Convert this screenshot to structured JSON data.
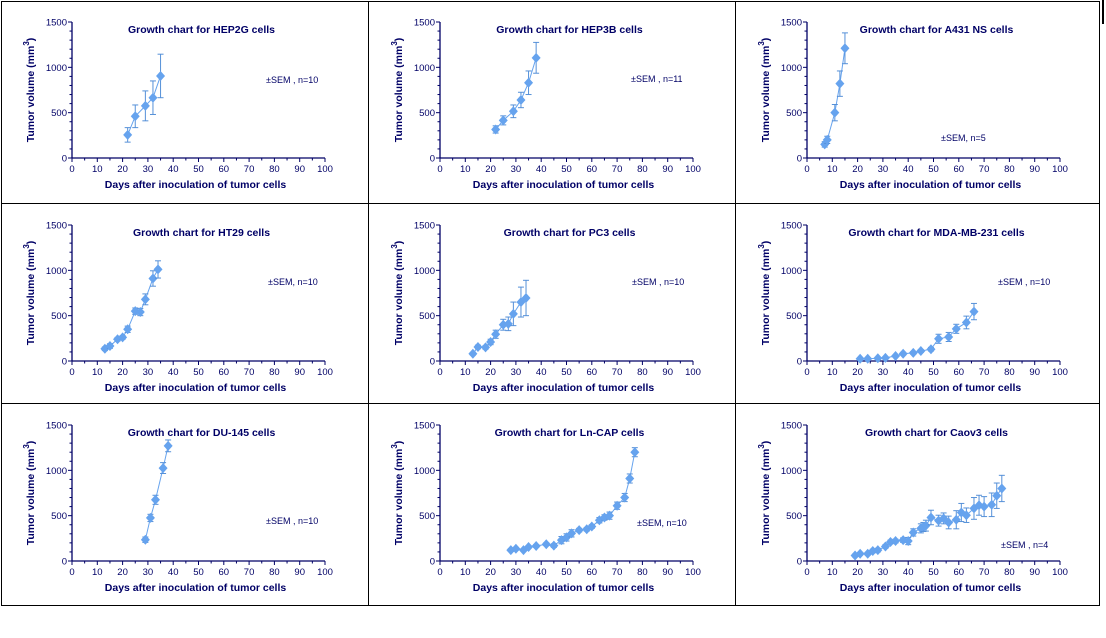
{
  "colors": {
    "axis": "#000066",
    "series": "#66a3ee",
    "error": "#5590d8"
  },
  "common": {
    "xlabel": "Days after inoculation of tumor cells",
    "ylabel_main": "Tumor volume (mm",
    "ylabel_sup": "3",
    "ylabel_end": ")",
    "xticks": [
      "0",
      "10",
      "20",
      "30",
      "40",
      "50",
      "60",
      "70",
      "80",
      "90",
      "100"
    ],
    "yticks": [
      "0",
      "500",
      "1000",
      "1500"
    ]
  },
  "chart_data": [
    {
      "type": "line",
      "title": "Growth chart for HEP2G cells",
      "annotation": "±SEM , n=10",
      "xlim": [
        0,
        100
      ],
      "ylim": [
        0,
        1500
      ],
      "x": [
        22,
        25,
        29,
        32,
        35
      ],
      "y": [
        255,
        460,
        575,
        665,
        905
      ],
      "err": [
        80,
        125,
        165,
        185,
        240
      ]
    },
    {
      "type": "line",
      "title": "Growth chart for HEP3B cells",
      "annotation": "±SEM , n=11",
      "xlim": [
        0,
        100
      ],
      "ylim": [
        0,
        1500
      ],
      "x": [
        22,
        25,
        29,
        32,
        35,
        38
      ],
      "y": [
        315,
        415,
        515,
        640,
        830,
        1105
      ],
      "err": [
        40,
        50,
        70,
        85,
        130,
        170
      ]
    },
    {
      "type": "line",
      "title": "Growth chart for A431 NS cells",
      "annotation": "±SEM, n=5",
      "xlim": [
        0,
        100
      ],
      "ylim": [
        0,
        1500
      ],
      "x": [
        7,
        8,
        11,
        13,
        15
      ],
      "y": [
        150,
        200,
        500,
        820,
        1210
      ],
      "err": [
        30,
        40,
        90,
        140,
        170
      ]
    },
    {
      "type": "line",
      "title": "Growth chart for HT29 cells",
      "annotation": "±SEM, n=10",
      "xlim": [
        0,
        100
      ],
      "ylim": [
        0,
        1500
      ],
      "x": [
        13,
        15,
        18,
        20,
        22,
        25,
        27,
        29,
        32,
        34
      ],
      "y": [
        135,
        165,
        240,
        260,
        350,
        550,
        540,
        680,
        910,
        1010
      ],
      "err": [
        20,
        25,
        20,
        20,
        35,
        35,
        40,
        60,
        85,
        95
      ]
    },
    {
      "type": "line",
      "title": "Growth chart for PC3 cells",
      "annotation": "±SEM , n=10",
      "xlim": [
        0,
        100
      ],
      "ylim": [
        0,
        1500
      ],
      "x": [
        13,
        15,
        18,
        20,
        22,
        25,
        27,
        29,
        32,
        34
      ],
      "y": [
        80,
        155,
        150,
        210,
        295,
        400,
        410,
        520,
        650,
        695
      ],
      "err": [
        15,
        20,
        20,
        30,
        45,
        60,
        75,
        130,
        165,
        195
      ]
    },
    {
      "type": "line",
      "title": "Growth chart for MDA-MB-231 cells",
      "annotation": "±SEM , n=10",
      "xlim": [
        0,
        100
      ],
      "ylim": [
        0,
        1500
      ],
      "x": [
        21,
        24,
        28,
        31,
        35,
        38,
        42,
        45,
        49,
        52,
        56,
        59,
        63,
        66
      ],
      "y": [
        25,
        25,
        30,
        35,
        55,
        80,
        90,
        110,
        130,
        245,
        265,
        355,
        425,
        545
      ],
      "err": [
        10,
        10,
        10,
        10,
        10,
        15,
        15,
        15,
        20,
        50,
        50,
        50,
        70,
        90
      ]
    },
    {
      "type": "line",
      "title": "Growth chart for DU-145 cells",
      "annotation": "±SEM , n=10",
      "xlim": [
        0,
        100
      ],
      "ylim": [
        0,
        1500
      ],
      "x": [
        29,
        31,
        33,
        36,
        38
      ],
      "y": [
        235,
        475,
        675,
        1025,
        1270
      ],
      "err": [
        30,
        40,
        50,
        60,
        65
      ]
    },
    {
      "type": "line",
      "title": "Growth chart for Ln-CAP cells",
      "annotation": "±SEM, n=10",
      "xlim": [
        0,
        100
      ],
      "ylim": [
        0,
        1500
      ],
      "x": [
        28,
        30,
        33,
        35,
        38,
        42,
        45,
        48,
        50,
        52,
        55,
        58,
        60,
        63,
        65,
        67,
        70,
        73,
        75,
        77
      ],
      "y": [
        120,
        135,
        120,
        155,
        165,
        185,
        170,
        230,
        260,
        305,
        340,
        350,
        380,
        450,
        480,
        500,
        610,
        700,
        910,
        1200
      ],
      "err": [
        15,
        15,
        15,
        15,
        15,
        15,
        20,
        40,
        40,
        40,
        20,
        20,
        20,
        30,
        30,
        40,
        40,
        45,
        50,
        50
      ]
    },
    {
      "type": "line",
      "title": "Growth chart for Caov3 cells",
      "annotation": "±SEM , n=4",
      "xlim": [
        0,
        100
      ],
      "ylim": [
        0,
        1500
      ],
      "x": [
        19,
        21,
        24,
        26,
        28,
        31,
        33,
        35,
        38,
        40,
        42,
        45,
        46,
        47,
        49,
        52,
        54,
        56,
        59,
        61,
        63,
        66,
        68,
        70,
        73,
        75,
        77
      ],
      "y": [
        60,
        80,
        80,
        110,
        120,
        160,
        210,
        220,
        230,
        220,
        315,
        360,
        375,
        390,
        480,
        445,
        470,
        425,
        455,
        535,
        505,
        580,
        615,
        600,
        620,
        720,
        800
      ],
      "err": [
        15,
        15,
        15,
        20,
        20,
        20,
        20,
        20,
        25,
        40,
        40,
        50,
        50,
        60,
        80,
        60,
        60,
        70,
        100,
        100,
        80,
        120,
        110,
        110,
        130,
        140,
        145
      ]
    }
  ]
}
